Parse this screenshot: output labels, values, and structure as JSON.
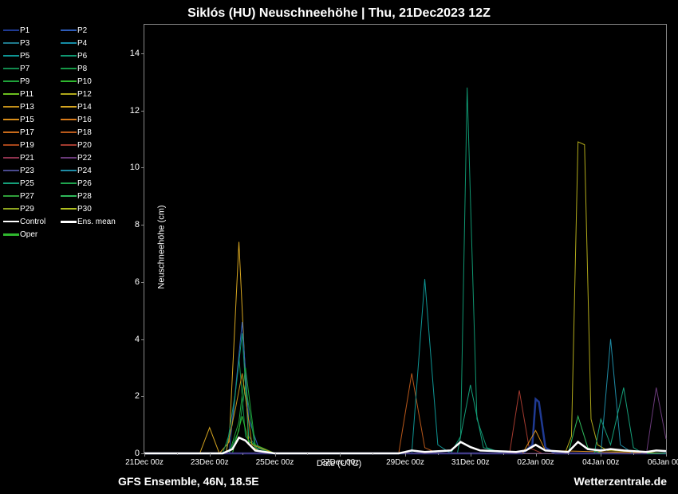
{
  "title": "Siklós  (HU)  Neuschneehöhe | Thu, 21Dec2023 12Z",
  "y_axis_label": "Neuschneehöhe (cm)",
  "x_axis_label": "Date (UTC)",
  "footer_left": "GFS Ensemble, 46N, 18.5E",
  "footer_right": "Wetterzentrale.de",
  "background_color": "#000000",
  "text_color": "#ffffff",
  "axis_color": "#888888",
  "ylim": [
    0,
    15
  ],
  "y_ticks": [
    0,
    2,
    4,
    6,
    8,
    10,
    12,
    14
  ],
  "x_ticks": [
    "21Dec 00z",
    "23Dec 00z",
    "25Dec 00z",
    "27Dec 00z",
    "29Dec 00z",
    "31Dec 00z",
    "02Jan 00z",
    "04Jan 00z",
    "06Jan 00z"
  ],
  "x_domain": [
    0,
    16
  ],
  "legend_items": [
    {
      "label": "P1",
      "color": "#1f3a93"
    },
    {
      "label": "P2",
      "color": "#2e5cb8"
    },
    {
      "label": "P3",
      "color": "#1f7a8c"
    },
    {
      "label": "P4",
      "color": "#158ca6"
    },
    {
      "label": "P5",
      "color": "#0e9594"
    },
    {
      "label": "P6",
      "color": "#0f9670"
    },
    {
      "label": "P7",
      "color": "#128a4e"
    },
    {
      "label": "P8",
      "color": "#159947"
    },
    {
      "label": "P9",
      "color": "#1fa33a"
    },
    {
      "label": "P10",
      "color": "#2fb82e"
    },
    {
      "label": "P11",
      "color": "#6bbf1f"
    },
    {
      "label": "P12",
      "color": "#b0a81a"
    },
    {
      "label": "P13",
      "color": "#c28f1a"
    },
    {
      "label": "P14",
      "color": "#d6a520"
    },
    {
      "label": "P15",
      "color": "#d98e1a"
    },
    {
      "label": "P16",
      "color": "#d97b1a"
    },
    {
      "label": "P17",
      "color": "#c76a1a"
    },
    {
      "label": "P18",
      "color": "#b8581a"
    },
    {
      "label": "P19",
      "color": "#a8461a"
    },
    {
      "label": "P20",
      "color": "#a33a2f"
    },
    {
      "label": "P21",
      "color": "#8f324f"
    },
    {
      "label": "P22",
      "color": "#6a3a7a"
    },
    {
      "label": "P23",
      "color": "#4a4a8f"
    },
    {
      "label": "P24",
      "color": "#1f8ca6"
    },
    {
      "label": "P25",
      "color": "#159f7a"
    },
    {
      "label": "P26",
      "color": "#1fa34e"
    },
    {
      "label": "P27",
      "color": "#2f9f3a"
    },
    {
      "label": "P28",
      "color": "#2fb85a"
    },
    {
      "label": "P29",
      "color": "#8fa61f"
    },
    {
      "label": "P30",
      "color": "#b0bf1f"
    },
    {
      "label": "Control",
      "color": "#ffffff"
    },
    {
      "label": "Ens. mean",
      "color": "#ffffff",
      "thick": true
    },
    {
      "label": "Oper",
      "color": "#2fb82e",
      "thick": true
    }
  ],
  "series": [
    {
      "color": "#d6a520",
      "w": 1,
      "pts": [
        [
          0,
          0
        ],
        [
          1.7,
          0
        ],
        [
          2.0,
          0.9
        ],
        [
          2.3,
          0
        ],
        [
          2.6,
          0.4
        ],
        [
          2.9,
          7.4
        ],
        [
          3.2,
          0.3
        ],
        [
          3.5,
          0.1
        ],
        [
          4,
          0
        ],
        [
          16,
          0
        ]
      ]
    },
    {
      "color": "#128a4e",
      "w": 1,
      "pts": [
        [
          0,
          0
        ],
        [
          2.4,
          0
        ],
        [
          2.7,
          1.0
        ],
        [
          2.9,
          3.4
        ],
        [
          3.1,
          0.6
        ],
        [
          3.4,
          0.2
        ],
        [
          4,
          0
        ],
        [
          16,
          0
        ]
      ]
    },
    {
      "color": "#2e5cb8",
      "w": 1,
      "pts": [
        [
          0,
          0
        ],
        [
          2.6,
          0
        ],
        [
          3.0,
          4.6
        ],
        [
          3.2,
          1.2
        ],
        [
          3.5,
          0.2
        ],
        [
          4,
          0
        ],
        [
          16,
          0
        ]
      ]
    },
    {
      "color": "#0f9670",
      "w": 1,
      "pts": [
        [
          0,
          0
        ],
        [
          2.5,
          0
        ],
        [
          2.8,
          2.2
        ],
        [
          3.0,
          4.2
        ],
        [
          3.2,
          0.6
        ],
        [
          3.5,
          0.1
        ],
        [
          4,
          0
        ],
        [
          16,
          0
        ]
      ]
    },
    {
      "color": "#159947",
      "w": 1,
      "pts": [
        [
          0,
          0
        ],
        [
          2.6,
          0
        ],
        [
          2.9,
          0.8
        ],
        [
          3.1,
          2.4
        ],
        [
          3.4,
          0.2
        ],
        [
          4,
          0
        ],
        [
          16,
          0
        ]
      ]
    },
    {
      "color": "#1fa33a",
      "w": 1,
      "pts": [
        [
          0,
          0
        ],
        [
          2.6,
          0
        ],
        [
          2.9,
          1.1
        ],
        [
          3.1,
          3.0
        ],
        [
          3.4,
          0.3
        ],
        [
          4,
          0
        ],
        [
          16,
          0
        ]
      ]
    },
    {
      "color": "#2fb82e",
      "w": 1,
      "pts": [
        [
          0,
          0
        ],
        [
          2.7,
          0
        ],
        [
          3.0,
          1.3
        ],
        [
          3.2,
          0.4
        ],
        [
          4,
          0
        ],
        [
          16,
          0
        ]
      ]
    },
    {
      "color": "#c28f1a",
      "w": 1,
      "pts": [
        [
          0,
          0
        ],
        [
          2.5,
          0
        ],
        [
          2.8,
          1.6
        ],
        [
          3.0,
          2.8
        ],
        [
          3.3,
          0.3
        ],
        [
          4,
          0
        ],
        [
          16,
          0
        ]
      ]
    },
    {
      "color": "#b8581a",
      "w": 1,
      "pts": [
        [
          0,
          0
        ],
        [
          7.8,
          0
        ],
        [
          8.2,
          2.8
        ],
        [
          8.6,
          0.2
        ],
        [
          9,
          0
        ],
        [
          16,
          0
        ]
      ]
    },
    {
      "color": "#0e9594",
      "w": 1,
      "pts": [
        [
          0,
          0
        ],
        [
          8.2,
          0
        ],
        [
          8.6,
          6.1
        ],
        [
          9.0,
          0.3
        ],
        [
          9.4,
          0
        ],
        [
          16,
          0
        ]
      ]
    },
    {
      "color": "#0f9670",
      "w": 1,
      "pts": [
        [
          0,
          0
        ],
        [
          9.4,
          0
        ],
        [
          9.7,
          0.6
        ],
        [
          9.9,
          12.8
        ],
        [
          10.2,
          1.2
        ],
        [
          10.5,
          0.2
        ],
        [
          11,
          0
        ],
        [
          16,
          0
        ]
      ]
    },
    {
      "color": "#159f7a",
      "w": 1,
      "pts": [
        [
          0,
          0
        ],
        [
          9.6,
          0
        ],
        [
          10.0,
          2.4
        ],
        [
          10.4,
          0.2
        ],
        [
          11,
          0
        ],
        [
          16,
          0
        ]
      ]
    },
    {
      "color": "#a33a2f",
      "w": 1,
      "pts": [
        [
          0,
          0
        ],
        [
          11.2,
          0
        ],
        [
          11.5,
          2.2
        ],
        [
          11.8,
          0.2
        ],
        [
          12.2,
          0
        ],
        [
          16,
          0
        ]
      ]
    },
    {
      "color": "#1f3a93",
      "w": 2.5,
      "pts": [
        [
          0,
          0
        ],
        [
          11.6,
          0
        ],
        [
          11.9,
          0.3
        ],
        [
          12.0,
          1.9
        ],
        [
          12.1,
          1.8
        ],
        [
          12.3,
          0.2
        ],
        [
          12.6,
          0
        ],
        [
          16,
          0
        ]
      ]
    },
    {
      "color": "#d98e1a",
      "w": 1,
      "pts": [
        [
          0,
          0
        ],
        [
          11.6,
          0
        ],
        [
          12.0,
          0.8
        ],
        [
          12.3,
          0.1
        ],
        [
          16,
          0
        ]
      ]
    },
    {
      "color": "#b0a81a",
      "w": 1,
      "pts": [
        [
          0,
          0
        ],
        [
          12.9,
          0
        ],
        [
          13.1,
          0.6
        ],
        [
          13.3,
          10.9
        ],
        [
          13.5,
          10.8
        ],
        [
          13.7,
          1.2
        ],
        [
          13.9,
          0.3
        ],
        [
          14.2,
          0.1
        ],
        [
          16,
          0
        ]
      ]
    },
    {
      "color": "#1f8ca6",
      "w": 1,
      "pts": [
        [
          0,
          0
        ],
        [
          14.0,
          0
        ],
        [
          14.3,
          4.0
        ],
        [
          14.6,
          0.3
        ],
        [
          15,
          0
        ],
        [
          16,
          0
        ]
      ]
    },
    {
      "color": "#159f7a",
      "w": 1,
      "pts": [
        [
          0,
          0
        ],
        [
          13.8,
          0
        ],
        [
          14.0,
          1.2
        ],
        [
          14.3,
          0.3
        ],
        [
          14.7,
          2.3
        ],
        [
          15.0,
          0.2
        ],
        [
          15.3,
          0
        ],
        [
          16,
          0
        ]
      ]
    },
    {
      "color": "#2fb85a",
      "w": 1,
      "pts": [
        [
          0,
          0
        ],
        [
          13.0,
          0
        ],
        [
          13.3,
          1.3
        ],
        [
          13.6,
          0.2
        ],
        [
          14,
          0
        ],
        [
          16,
          0
        ]
      ]
    },
    {
      "color": "#6a3a7a",
      "w": 1,
      "pts": [
        [
          0,
          0
        ],
        [
          15.4,
          0
        ],
        [
          15.7,
          2.3
        ],
        [
          16,
          0.5
        ]
      ]
    },
    {
      "color": "#ffffff",
      "w": 2.5,
      "pts": [
        [
          0,
          0
        ],
        [
          2.4,
          0
        ],
        [
          2.7,
          0.15
        ],
        [
          2.9,
          0.55
        ],
        [
          3.1,
          0.45
        ],
        [
          3.4,
          0.1
        ],
        [
          4,
          0
        ],
        [
          7.8,
          0
        ],
        [
          8.2,
          0.1
        ],
        [
          8.6,
          0.05
        ],
        [
          9.4,
          0.1
        ],
        [
          9.7,
          0.4
        ],
        [
          10.0,
          0.22
        ],
        [
          10.3,
          0.1
        ],
        [
          11.4,
          0.05
        ],
        [
          11.7,
          0.1
        ],
        [
          12.0,
          0.3
        ],
        [
          12.3,
          0.1
        ],
        [
          13.0,
          0.05
        ],
        [
          13.3,
          0.4
        ],
        [
          13.6,
          0.15
        ],
        [
          14.0,
          0.1
        ],
        [
          14.3,
          0.15
        ],
        [
          14.7,
          0.1
        ],
        [
          15.4,
          0.05
        ],
        [
          15.7,
          0.1
        ],
        [
          16,
          0.08
        ]
      ]
    }
  ]
}
